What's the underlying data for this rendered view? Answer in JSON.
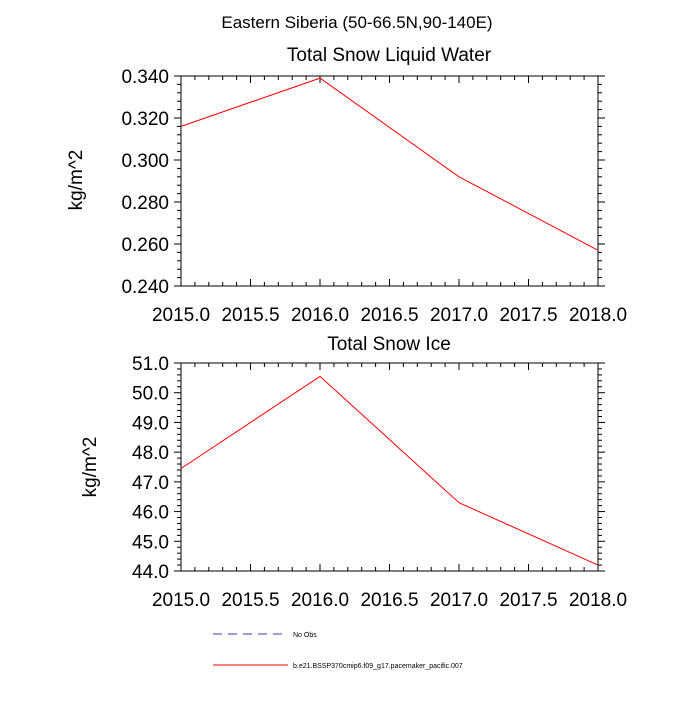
{
  "figure": {
    "title": "Eastern Siberia (50-66.5N,90-140E)"
  },
  "legend": {
    "entries": [
      {
        "label": "No Obs",
        "color": "#3b3bb3",
        "dash": "dashed"
      },
      {
        "label": "b.e21.BSSP370cmip6.f09_g17.pacemaker_pacific.007",
        "color": "#ff0000",
        "dash": "solid"
      }
    ]
  },
  "chart_data": [
    {
      "type": "line",
      "title": "Total Snow Liquid Water",
      "xlabel": "",
      "ylabel": "kg/m^2",
      "xlim": [
        2015.0,
        2018.0
      ],
      "ylim": [
        0.24,
        0.34
      ],
      "x_ticks": [
        "2015.0",
        "2015.5",
        "2016.0",
        "2016.5",
        "2017.0",
        "2017.5",
        "2018.0"
      ],
      "y_ticks": [
        "0.240",
        "0.260",
        "0.280",
        "0.300",
        "0.320",
        "0.340"
      ],
      "series": [
        {
          "name": "b.e21.BSSP370cmip6.f09_g17.pacemaker_pacific.007",
          "color": "#ff0000",
          "x": [
            2015.0,
            2016.0,
            2017.0,
            2018.0
          ],
          "values": [
            0.316,
            0.339,
            0.292,
            0.257
          ]
        }
      ]
    },
    {
      "type": "line",
      "title": "Total Snow Ice",
      "xlabel": "",
      "ylabel": "kg/m^2",
      "xlim": [
        2015.0,
        2018.0
      ],
      "ylim": [
        44.0,
        51.0
      ],
      "x_ticks": [
        "2015.0",
        "2015.5",
        "2016.0",
        "2016.5",
        "2017.0",
        "2017.5",
        "2018.0"
      ],
      "y_ticks": [
        "44.0",
        "45.0",
        "46.0",
        "47.0",
        "48.0",
        "49.0",
        "50.0",
        "51.0"
      ],
      "series": [
        {
          "name": "b.e21.BSSP370cmip6.f09_g17.pacemaker_pacific.007",
          "color": "#ff0000",
          "x": [
            2015.0,
            2016.0,
            2017.0,
            2018.0
          ],
          "values": [
            47.45,
            50.55,
            46.3,
            44.2
          ]
        }
      ]
    }
  ]
}
